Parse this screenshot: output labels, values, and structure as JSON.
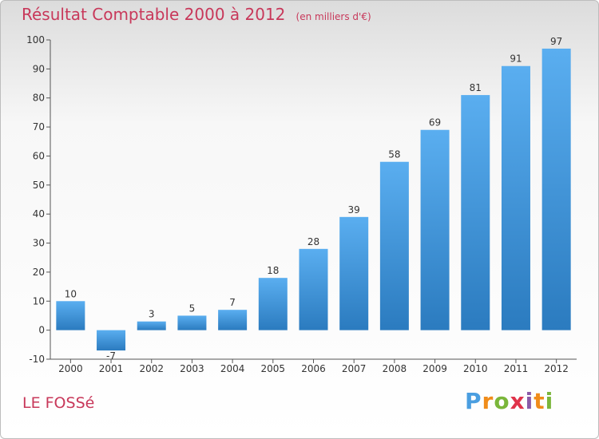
{
  "title": "Résultat Comptable 2000 à 2012",
  "subtitle": "(en milliers d'€)",
  "footer_label": "LE FOSSé",
  "logo_text": "Proxiti",
  "colors": {
    "accent": "#c8385a",
    "bar_top": "#5aaef0",
    "bar_bottom": "#2b7bbf"
  },
  "chart_data": {
    "type": "bar",
    "title": "Résultat Comptable 2000 à 2012",
    "subtitle": "(en milliers d'€)",
    "categories": [
      "2000",
      "2001",
      "2002",
      "2003",
      "2004",
      "2005",
      "2006",
      "2007",
      "2008",
      "2009",
      "2010",
      "2011",
      "2012"
    ],
    "values": [
      10,
      -7,
      3,
      5,
      7,
      18,
      28,
      39,
      58,
      69,
      81,
      91,
      97
    ],
    "ylim": [
      -10,
      100
    ],
    "yticks": [
      -10,
      0,
      10,
      20,
      30,
      40,
      50,
      60,
      70,
      80,
      90,
      100
    ],
    "xlabel": "",
    "ylabel": "",
    "grid": false,
    "legend": "none"
  }
}
